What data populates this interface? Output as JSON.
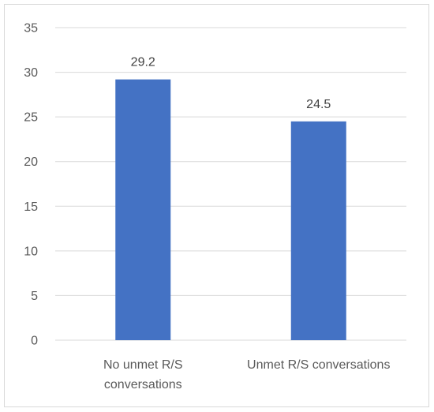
{
  "chart_data": {
    "type": "bar",
    "categories": [
      [
        "No unmet R/S",
        "conversations"
      ],
      [
        "Unmet R/S conversations"
      ]
    ],
    "values": [
      29.2,
      24.5
    ],
    "data_labels": [
      "29.2",
      "24.5"
    ],
    "y_ticks": [
      "0",
      "5",
      "10",
      "15",
      "20",
      "25",
      "30",
      "35"
    ],
    "ylim": [
      0,
      35
    ],
    "title": "",
    "xlabel": "",
    "ylabel": "",
    "grid": true,
    "legend": "none",
    "colors": {
      "bar": "#4472C4",
      "grid": "#D9D9D9",
      "border": "#D9D9D9",
      "text": "#595959"
    }
  }
}
